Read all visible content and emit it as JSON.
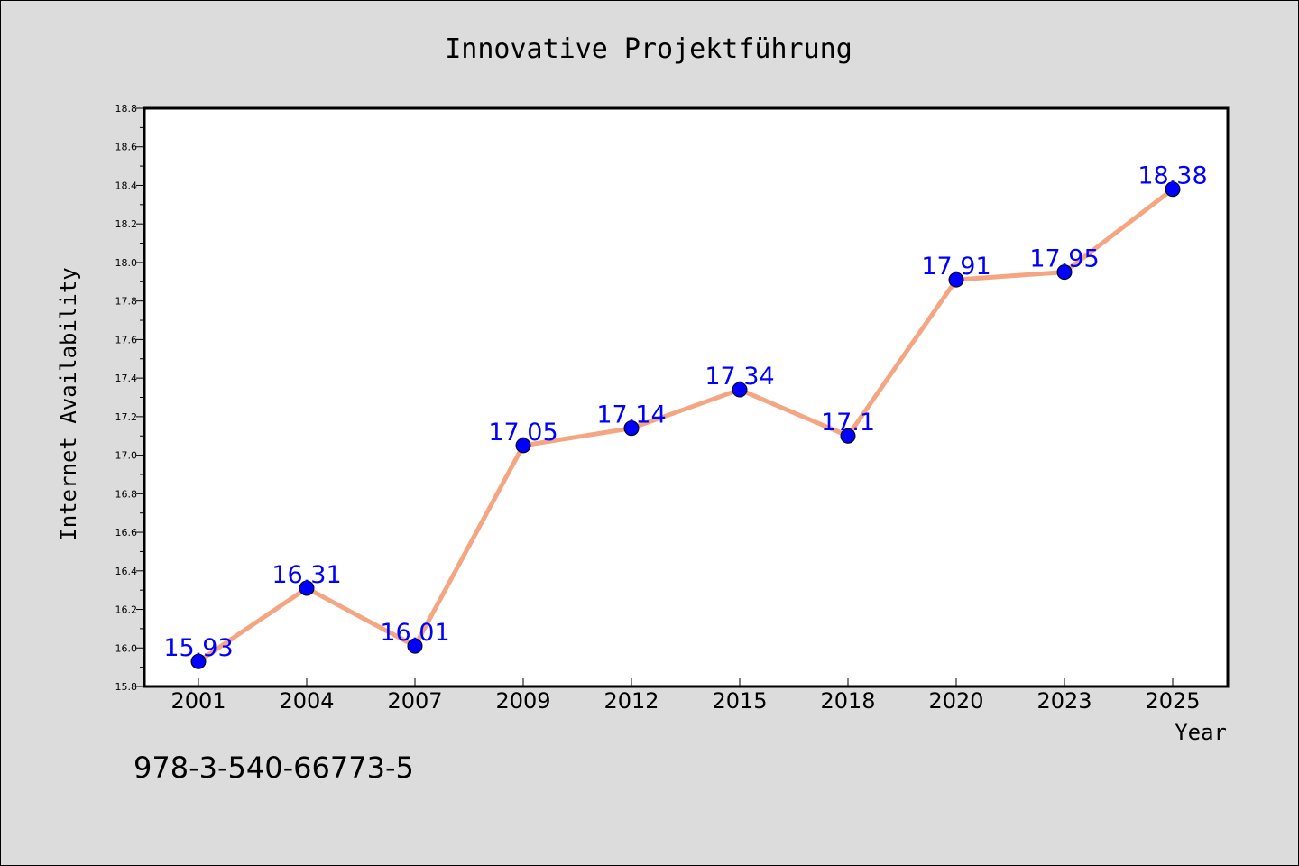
{
  "footer": {
    "isbn": "978-3-540-66773-5"
  },
  "colors": {
    "background": "#dcdcdc",
    "plot_background": "#ffffff",
    "line": "#f4a582",
    "marker": "#0000ff",
    "label": "#0000ff"
  },
  "chart_data": {
    "type": "line",
    "title": "Innovative Projektführung",
    "xlabel": "Year",
    "ylabel": "Internet Availability",
    "categories": [
      "2001",
      "2004",
      "2007",
      "2009",
      "2012",
      "2015",
      "2018",
      "2020",
      "2023",
      "2025"
    ],
    "series": [
      {
        "values": [
          15.93,
          16.31,
          16.01,
          17.05,
          17.14,
          17.34,
          17.1,
          17.91,
          17.95,
          18.38
        ],
        "data_labels": [
          "15.93",
          "16.31",
          "16.01",
          "17.05",
          "17.14",
          "17.34",
          "17.1",
          "17.91",
          "17.95",
          "18.38"
        ]
      }
    ],
    "ylim": [
      15.8,
      18.8
    ],
    "yticks": [
      "15.8",
      "16.0",
      "16.2",
      "16.4",
      "16.6",
      "16.8",
      "17.0",
      "17.2",
      "17.4",
      "17.6",
      "17.8",
      "18.0",
      "18.2",
      "18.4",
      "18.6",
      "18.8"
    ],
    "grid": false,
    "legend": false
  }
}
